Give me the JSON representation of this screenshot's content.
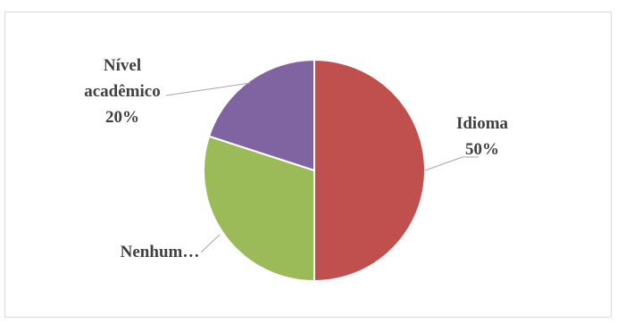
{
  "chart_data": {
    "type": "pie",
    "title": "",
    "slices": [
      {
        "name": "Idioma",
        "value": 50,
        "label": "50%",
        "color": "#C0504D"
      },
      {
        "name": "Nenhum",
        "display_name": "Nenhum…",
        "value": 30,
        "label": "",
        "color": "#9BBB59"
      },
      {
        "name": "Nível acadêmico",
        "name_lines": [
          "Nível",
          "acadêmico"
        ],
        "value": 20,
        "label": "20%",
        "color": "#8064A2"
      }
    ],
    "legend": "none",
    "grid": false
  }
}
